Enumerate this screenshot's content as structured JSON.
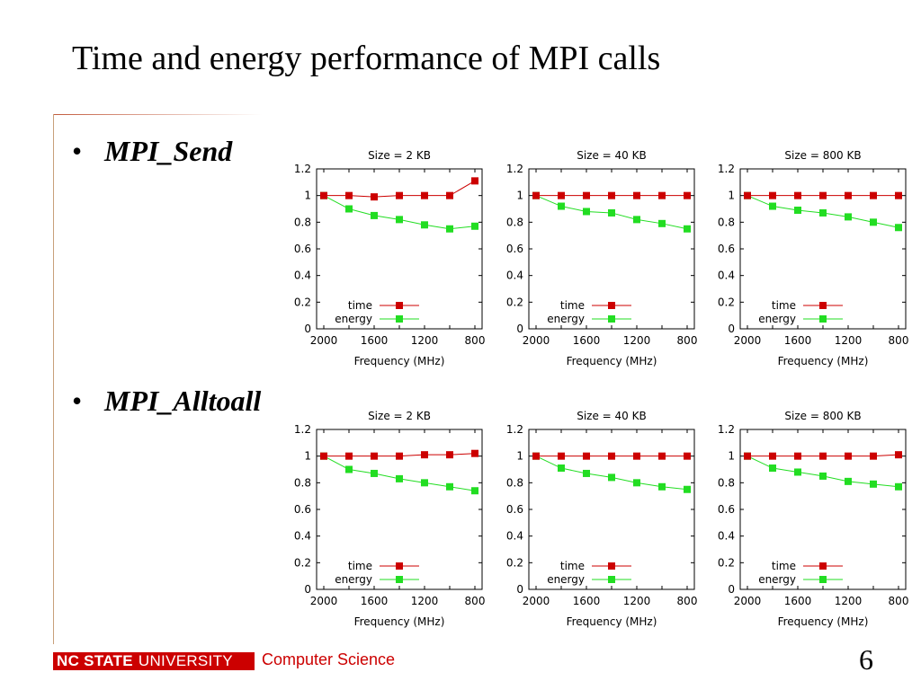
{
  "slide": {
    "title": "Time and energy performance of MPI calls",
    "bullets": [
      "MPI_Send",
      "MPI_Alltoall"
    ],
    "footer": {
      "university": "NC STATE",
      "university_rest": "UNIVERSITY",
      "department": "Computer Science"
    },
    "page_number": "6"
  },
  "colors": {
    "time": "#cc0000",
    "energy": "#22dd22",
    "accent": "#cc0000"
  },
  "chart_data": [
    {
      "type": "line",
      "group": "MPI_Send",
      "title": "Size = 2 KB",
      "xlabel": "Frequency (MHz)",
      "ylabel": "",
      "x": [
        2000,
        1800,
        1600,
        1400,
        1200,
        1000,
        800
      ],
      "x_tick_labels": [
        "2000",
        "1600",
        "1200",
        "800"
      ],
      "xlim": [
        2000,
        800
      ],
      "ylim": [
        0,
        1.2
      ],
      "y_tick_labels": [
        "0",
        "0.2",
        "0.4",
        "0.6",
        "0.8",
        "1",
        "1.2"
      ],
      "legend": "bottom-left",
      "series": [
        {
          "name": "time",
          "values": [
            1.0,
            1.0,
            0.99,
            1.0,
            1.0,
            1.0,
            1.11
          ]
        },
        {
          "name": "energy",
          "values": [
            1.0,
            0.9,
            0.85,
            0.82,
            0.78,
            0.75,
            0.77
          ]
        }
      ]
    },
    {
      "type": "line",
      "group": "MPI_Send",
      "title": "Size = 40 KB",
      "xlabel": "Frequency (MHz)",
      "ylabel": "",
      "x": [
        2000,
        1800,
        1600,
        1400,
        1200,
        1000,
        800
      ],
      "x_tick_labels": [
        "2000",
        "1600",
        "1200",
        "800"
      ],
      "xlim": [
        2000,
        800
      ],
      "ylim": [
        0,
        1.2
      ],
      "y_tick_labels": [
        "0",
        "0.2",
        "0.4",
        "0.6",
        "0.8",
        "1",
        "1.2"
      ],
      "legend": "bottom-left",
      "series": [
        {
          "name": "time",
          "values": [
            1.0,
            1.0,
            1.0,
            1.0,
            1.0,
            1.0,
            1.0
          ]
        },
        {
          "name": "energy",
          "values": [
            1.0,
            0.92,
            0.88,
            0.87,
            0.82,
            0.79,
            0.75
          ]
        }
      ]
    },
    {
      "type": "line",
      "group": "MPI_Send",
      "title": "Size = 800 KB",
      "xlabel": "Frequency (MHz)",
      "ylabel": "",
      "x": [
        2000,
        1800,
        1600,
        1400,
        1200,
        1000,
        800
      ],
      "x_tick_labels": [
        "2000",
        "1600",
        "1200",
        "800"
      ],
      "xlim": [
        2000,
        800
      ],
      "ylim": [
        0,
        1.2
      ],
      "y_tick_labels": [
        "0",
        "0.2",
        "0.4",
        "0.6",
        "0.8",
        "1",
        "1.2"
      ],
      "legend": "bottom-left",
      "series": [
        {
          "name": "time",
          "values": [
            1.0,
            1.0,
            1.0,
            1.0,
            1.0,
            1.0,
            1.0
          ]
        },
        {
          "name": "energy",
          "values": [
            1.0,
            0.92,
            0.89,
            0.87,
            0.84,
            0.8,
            0.76
          ]
        }
      ]
    },
    {
      "type": "line",
      "group": "MPI_Alltoall",
      "title": "Size = 2 KB",
      "xlabel": "Frequency (MHz)",
      "ylabel": "",
      "x": [
        2000,
        1800,
        1600,
        1400,
        1200,
        1000,
        800
      ],
      "x_tick_labels": [
        "2000",
        "1600",
        "1200",
        "800"
      ],
      "xlim": [
        2000,
        800
      ],
      "ylim": [
        0,
        1.2
      ],
      "y_tick_labels": [
        "0",
        "0.2",
        "0.4",
        "0.6",
        "0.8",
        "1",
        "1.2"
      ],
      "legend": "bottom-left",
      "series": [
        {
          "name": "time",
          "values": [
            1.0,
            1.0,
            1.0,
            1.0,
            1.01,
            1.01,
            1.02
          ]
        },
        {
          "name": "energy",
          "values": [
            1.0,
            0.9,
            0.87,
            0.83,
            0.8,
            0.77,
            0.74
          ]
        }
      ]
    },
    {
      "type": "line",
      "group": "MPI_Alltoall",
      "title": "Size = 40 KB",
      "xlabel": "Frequency (MHz)",
      "ylabel": "",
      "x": [
        2000,
        1800,
        1600,
        1400,
        1200,
        1000,
        800
      ],
      "x_tick_labels": [
        "2000",
        "1600",
        "1200",
        "800"
      ],
      "xlim": [
        2000,
        800
      ],
      "ylim": [
        0,
        1.2
      ],
      "y_tick_labels": [
        "0",
        "0.2",
        "0.4",
        "0.6",
        "0.8",
        "1",
        "1.2"
      ],
      "legend": "bottom-left",
      "series": [
        {
          "name": "time",
          "values": [
            1.0,
            1.0,
            1.0,
            1.0,
            1.0,
            1.0,
            1.0
          ]
        },
        {
          "name": "energy",
          "values": [
            1.0,
            0.91,
            0.87,
            0.84,
            0.8,
            0.77,
            0.75
          ]
        }
      ]
    },
    {
      "type": "line",
      "group": "MPI_Alltoall",
      "title": "Size = 800 KB",
      "xlabel": "Frequency (MHz)",
      "ylabel": "",
      "x": [
        2000,
        1800,
        1600,
        1400,
        1200,
        1000,
        800
      ],
      "x_tick_labels": [
        "2000",
        "1600",
        "1200",
        "800"
      ],
      "xlim": [
        2000,
        800
      ],
      "ylim": [
        0,
        1.2
      ],
      "y_tick_labels": [
        "0",
        "0.2",
        "0.4",
        "0.6",
        "0.8",
        "1",
        "1.2"
      ],
      "legend": "bottom-left",
      "series": [
        {
          "name": "time",
          "values": [
            1.0,
            1.0,
            1.0,
            1.0,
            1.0,
            1.0,
            1.01
          ]
        },
        {
          "name": "energy",
          "values": [
            1.0,
            0.91,
            0.88,
            0.85,
            0.81,
            0.79,
            0.77
          ]
        }
      ]
    }
  ]
}
